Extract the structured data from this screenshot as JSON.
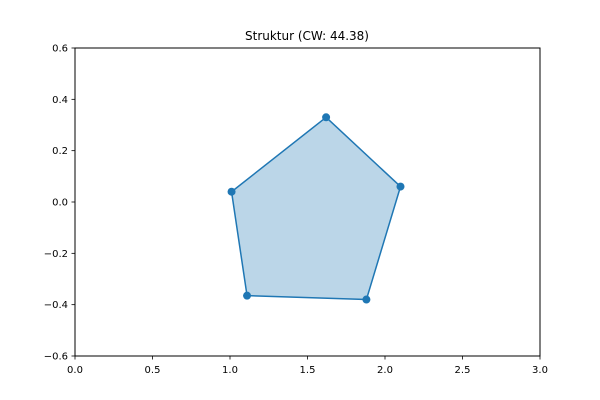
{
  "chart_data": {
    "type": "area",
    "title": "Struktur (CW: 44.38)",
    "xlabel": "",
    "ylabel": "",
    "xlim": [
      0.0,
      3.0
    ],
    "ylim": [
      -0.6,
      0.6
    ],
    "x_ticks": [
      "0.0",
      "0.5",
      "1.0",
      "1.5",
      "2.0",
      "2.5",
      "3.0"
    ],
    "y_ticks": [
      "−0.6",
      "−0.4",
      "−0.2",
      "0.0",
      "0.2",
      "0.4",
      "0.6"
    ],
    "grid": false,
    "series": [
      {
        "points": [
          {
            "x": 1.62,
            "y": 0.33
          },
          {
            "x": 2.1,
            "y": 0.06
          },
          {
            "x": 1.88,
            "y": -0.38
          },
          {
            "x": 1.11,
            "y": -0.365
          },
          {
            "x": 1.01,
            "y": 0.04
          }
        ]
      }
    ],
    "colors": {
      "line": "#1f77b4",
      "fill": "#1f77b4",
      "fill_opacity": 0.3,
      "marker": "#1f77b4"
    }
  }
}
